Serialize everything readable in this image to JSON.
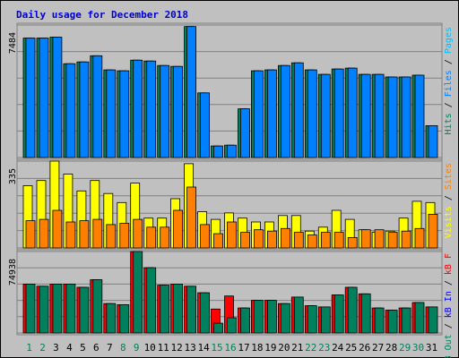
{
  "chart_data": {
    "type": "bar",
    "title": "Daily usage for December 2018",
    "categories": [
      "1",
      "2",
      "3",
      "4",
      "5",
      "6",
      "7",
      "8",
      "9",
      "10",
      "11",
      "12",
      "13",
      "14",
      "15",
      "16",
      "17",
      "18",
      "19",
      "20",
      "21",
      "22",
      "23",
      "24",
      "25",
      "26",
      "27",
      "28",
      "29",
      "30",
      "31"
    ],
    "weekend_days": [
      "1",
      "2",
      "8",
      "9",
      "15",
      "16",
      "22",
      "23",
      "29",
      "30"
    ],
    "colors": {
      "pages": "#00c0ff",
      "files": "#0080ff",
      "hits": "#00805c",
      "visits": "#ffff00",
      "sites": "#ff8000",
      "kb_f": "#ff0000",
      "kb_in": "#0000ff",
      "kb_out": "#00805c",
      "weekday_label": "#000000",
      "weekend_label": "#00805c",
      "title": "#0000cc"
    },
    "panels": [
      {
        "id": "hits-panel",
        "max_label": "7484",
        "ylim": [
          0,
          7484
        ],
        "legend": [
          {
            "text": "Pages",
            "color": "#00c0ff"
          },
          {
            "text": "Files",
            "color": "#0080ff"
          },
          {
            "text": "Hits",
            "color": "#00805c"
          }
        ],
        "series": [
          {
            "name": "Hits",
            "color": "#00805c",
            "values": [
              6750,
              6750,
              6800,
              5300,
              5400,
              5750,
              4950,
              4900,
              5500,
              5450,
              5200,
              5150,
              7400,
              3650,
              650,
              700,
              2750,
              4900,
              4950,
              5200,
              5350,
              4950,
              4700,
              5000,
              5050,
              4700,
              4700,
              4550,
              4550,
              4650,
              1800
            ]
          },
          {
            "name": "Files",
            "color": "#0080ff",
            "values": [
              6750,
              6750,
              6800,
              5300,
              5400,
              5750,
              4950,
              4900,
              5500,
              5450,
              5200,
              5150,
              7400,
              3650,
              650,
              700,
              2750,
              4900,
              4950,
              5200,
              5350,
              4950,
              4700,
              5000,
              5050,
              4700,
              4700,
              4550,
              4550,
              4650,
              1800
            ]
          }
        ]
      },
      {
        "id": "visits-panel",
        "max_label": "335",
        "ylim": [
          0,
          335
        ],
        "legend": [
          {
            "text": "Sites",
            "color": "#ff8000"
          },
          {
            "text": "Visits",
            "color": "#ffff00"
          }
        ],
        "series": [
          {
            "name": "Visits",
            "color": "#ffff00",
            "values": [
              240,
              260,
              335,
              285,
              220,
              260,
              210,
              175,
              250,
              115,
              115,
              190,
              325,
              140,
              110,
              135,
              115,
              100,
              100,
              125,
              125,
              65,
              80,
              145,
              110,
              70,
              60,
              65,
              115,
              180,
              175
            ]
          },
          {
            "name": "Sites",
            "color": "#ff8000",
            "values": [
              105,
              110,
              145,
              100,
              105,
              110,
              90,
              95,
              110,
              80,
              80,
              145,
              235,
              90,
              55,
              100,
              60,
              70,
              65,
              75,
              60,
              50,
              60,
              60,
              40,
              70,
              70,
              60,
              65,
              75,
              130
            ]
          }
        ]
      },
      {
        "id": "kbytes-panel",
        "max_label": "74938",
        "ylim": [
          0,
          74938
        ],
        "legend": [
          {
            "text": "kB F",
            "color": "#ff0000"
          },
          {
            "text": "kB In",
            "color": "#0000ff"
          },
          {
            "text": "kB Out",
            "color": "#00805c"
          }
        ],
        "series": [
          {
            "name": "kB F",
            "color": "#ff0000",
            "values": [
              45000,
              43000,
              45000,
              45000,
              42000,
              49000,
              27000,
              26000,
              74938,
              60000,
              44000,
              45000,
              43000,
              37000,
              22000,
              34000,
              23000,
              30000,
              30000,
              27000,
              33000,
              25000,
              24000,
              35000,
              42000,
              36000,
              23000,
              21000,
              23000,
              28000,
              24000
            ]
          },
          {
            "name": "kB Out",
            "color": "#00805c",
            "values": [
              45000,
              43000,
              45000,
              45000,
              42000,
              49000,
              27000,
              26000,
              74938,
              60000,
              44000,
              45000,
              43000,
              37000,
              9000,
              14000,
              23000,
              30000,
              30000,
              27000,
              33000,
              25000,
              24000,
              35000,
              42000,
              36000,
              23000,
              21000,
              23000,
              28000,
              24000
            ]
          }
        ]
      }
    ]
  }
}
